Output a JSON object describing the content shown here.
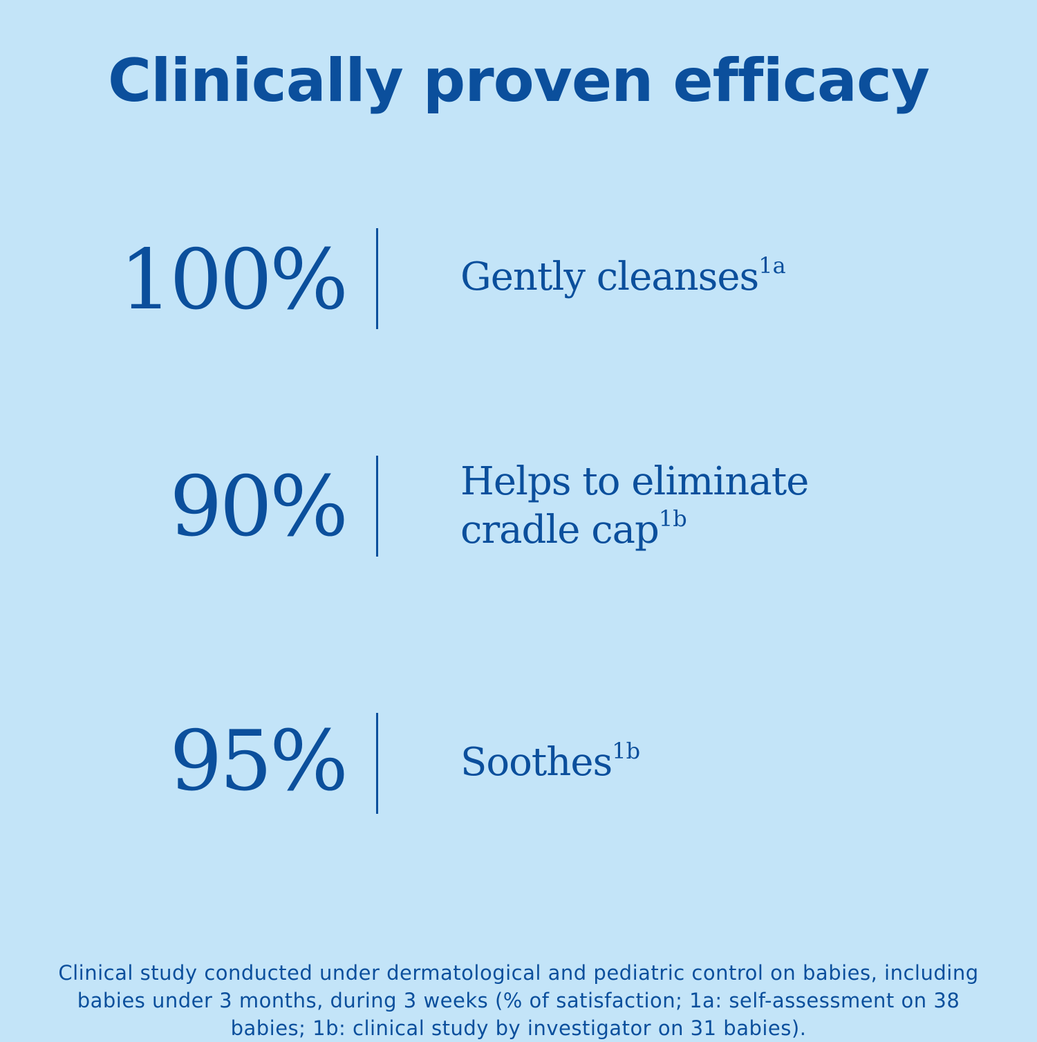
{
  "title": "Clinically proven efficacy",
  "stats": [
    {
      "value": "100%",
      "label_line1": "Gently cleanses",
      "label_line2": "",
      "superscript": "1a"
    },
    {
      "value": "90%",
      "label_line1": "Helps to eliminate",
      "label_line2": "cradle cap",
      "superscript": "1b"
    },
    {
      "value": "95%",
      "label_line1": "Soothes",
      "label_line2": "",
      "superscript": "1b"
    }
  ],
  "footnote": "Clinical study conducted under dermatological and pediatric control on babies, including babies under 3 months, during 3 weeks (% of satisfaction; 1a: self-assessment on 38 babies; 1b: clinical study by investigator on 31 babies).",
  "colors": {
    "background": "#c3e4f8",
    "text": "#0b4f9c"
  }
}
